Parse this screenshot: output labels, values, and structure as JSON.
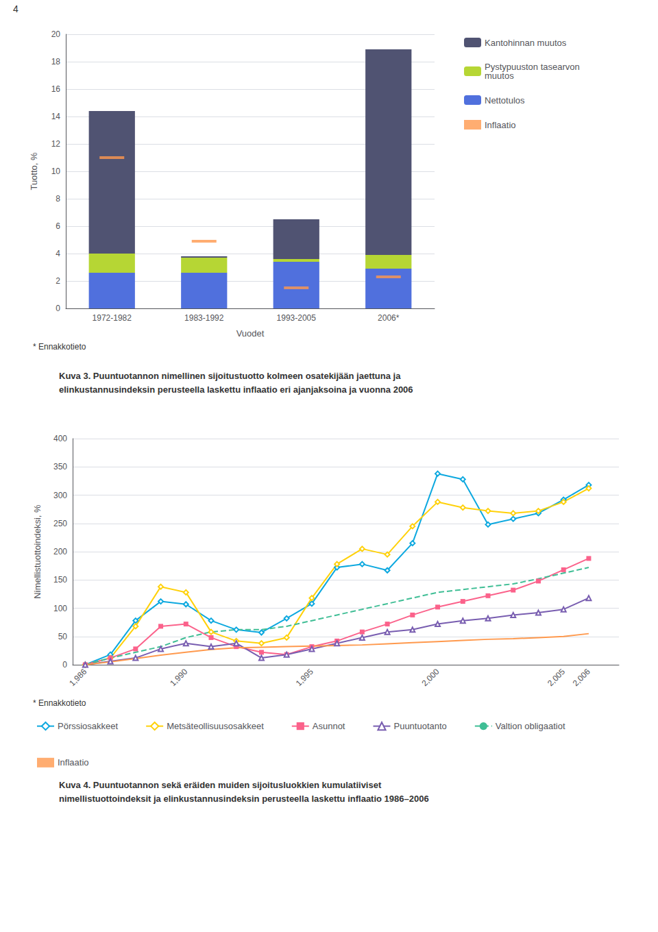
{
  "page_number": "4",
  "chart_data": [
    {
      "type": "bar",
      "stacked": true,
      "xlabel": "Vuodet",
      "ylabel": "Tuotto, %",
      "categories": [
        "1972-1982",
        "1983-1992",
        "1993-2005",
        "2006*"
      ],
      "series": [
        {
          "name": "Nettotulos",
          "values": [
            2.6,
            2.6,
            3.4,
            2.9
          ]
        },
        {
          "name": "Pystypuuston tasearvon\nmuutos",
          "values": [
            1.4,
            1.1,
            0.2,
            1.0
          ]
        },
        {
          "name": "Kantohinnan muutos",
          "values": [
            10.4,
            0.1,
            2.9,
            15.0
          ]
        },
        {
          "name": "Inflaatio",
          "type": "scatter",
          "marker": "hline",
          "values": [
            11.0,
            4.9,
            1.5,
            2.3
          ]
        }
      ],
      "ylim": [
        0,
        20
      ],
      "yticks": [
        0,
        2,
        4,
        6,
        8,
        10,
        12,
        14,
        16,
        18,
        20
      ],
      "grid": true,
      "legend": "right",
      "footnote": "* Ennakkotieto",
      "caption": "Kuva 3. Puuntuotannon nimellinen sijoitustuotto kolmeen osatekijään jaettuna ja\nelinkustannusindeksin perusteella laskettu inflaatio eri ajanjaksoina ja vuonna 2006"
    },
    {
      "type": "line",
      "ylabel": "Nimellistuottoindeksi, %",
      "x": [
        1986,
        1987,
        1988,
        1989,
        1990,
        1991,
        1992,
        1993,
        1994,
        1995,
        1996,
        1997,
        1998,
        1999,
        2000,
        2001,
        2002,
        2003,
        2004,
        2005,
        2006
      ],
      "series": [
        {
          "name": "Pörssiosakkeet",
          "marker": "diamond",
          "line_style": "solid",
          "values": [
            0,
            18,
            78,
            112,
            107,
            78,
            62,
            57,
            82,
            108,
            172,
            178,
            167,
            215,
            338,
            328,
            248,
            258,
            268,
            292,
            318
          ]
        },
        {
          "name": "Metsäteollisuusosakkeet",
          "marker": "diamond",
          "line_style": "solid",
          "values": [
            0,
            12,
            68,
            138,
            128,
            58,
            42,
            38,
            48,
            118,
            178,
            205,
            195,
            245,
            288,
            278,
            272,
            268,
            272,
            288,
            312
          ]
        },
        {
          "name": "Asunnot",
          "marker": "square",
          "line_style": "solid",
          "values": [
            0,
            12,
            28,
            68,
            72,
            48,
            32,
            22,
            18,
            32,
            42,
            58,
            72,
            88,
            102,
            112,
            122,
            132,
            148,
            168,
            188
          ]
        },
        {
          "name": "Puuntuotanto",
          "marker": "triangle",
          "line_style": "solid",
          "values": [
            0,
            6,
            12,
            28,
            38,
            32,
            38,
            12,
            18,
            28,
            38,
            48,
            58,
            62,
            72,
            78,
            82,
            88,
            92,
            98,
            118
          ]
        },
        {
          "name": "Valtion obligaatiot",
          "line_style": "dashed",
          "values": [
            0,
            12,
            22,
            32,
            48,
            58,
            62,
            62,
            68,
            78,
            88,
            98,
            108,
            118,
            128,
            133,
            138,
            143,
            152,
            162,
            172
          ]
        },
        {
          "name": "Inflaatio",
          "line_style": "solid",
          "values": [
            0,
            5,
            11,
            17,
            22,
            27,
            30,
            31,
            32,
            33,
            34,
            35,
            37,
            39,
            41,
            43,
            45,
            46,
            48,
            50,
            55
          ]
        }
      ],
      "xlim": [
        1985.5,
        2007.2
      ],
      "xticks": [
        1986,
        1990,
        1995,
        2000,
        2005,
        {
          "value": 2006,
          "label": "2006*"
        }
      ],
      "ylim": [
        0,
        400
      ],
      "yticks": [
        0,
        50,
        100,
        150,
        200,
        250,
        300,
        350,
        400
      ],
      "grid": true,
      "legend": "bottom",
      "footnote": "* Ennakkotieto",
      "caption": "Kuva 4. Puuntuotannon sekä eräiden muiden sijoitusluokkien kumulatiiviset\nnimellistuottoindeksit ja elinkustannusindeksin perusteella laskettu inflaatio 1986–2006"
    }
  ]
}
